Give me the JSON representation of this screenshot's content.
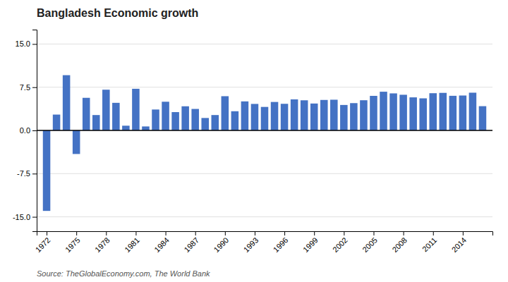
{
  "chart_data": {
    "type": "bar",
    "title": "Bangladesh Economic growth",
    "annotations": [
      "Source: TheGlobalEconomy.com, The World Bank"
    ],
    "x": [
      1972,
      1973,
      1974,
      1975,
      1976,
      1977,
      1978,
      1979,
      1980,
      1981,
      1982,
      1983,
      1984,
      1985,
      1986,
      1987,
      1988,
      1989,
      1990,
      1991,
      1992,
      1993,
      1994,
      1995,
      1996,
      1997,
      1998,
      1999,
      2000,
      2001,
      2002,
      2003,
      2004,
      2005,
      2006,
      2007,
      2008,
      2009,
      2010,
      2011,
      2012,
      2013,
      2014,
      2015,
      2016
    ],
    "values": [
      -13.97,
      2.75,
      9.59,
      -4.09,
      5.66,
      2.67,
      7.07,
      4.79,
      0.82,
      7.23,
      0.69,
      3.63,
      4.98,
      3.18,
      4.19,
      3.73,
      2.16,
      2.67,
      5.94,
      3.33,
      5.04,
      4.6,
      4.08,
      4.94,
      4.62,
      5.39,
      5.23,
      4.67,
      5.29,
      5.33,
      4.42,
      4.74,
      5.24,
      6.0,
      6.72,
      6.43,
      6.19,
      5.74,
      5.57,
      6.46,
      6.52,
      6.01,
      6.06,
      6.55,
      4.21
    ],
    "color": "#4472c4",
    "xlim": [
      1971,
      2017
    ],
    "xticks": [
      1972,
      1975,
      1978,
      1981,
      1984,
      1987,
      1990,
      1993,
      1996,
      1999,
      2002,
      2005,
      2008,
      2011,
      2014
    ],
    "ylim": [
      -17.5,
      17.5
    ],
    "yticks": [
      {
        "value": -15.0,
        "label": "-15.0"
      },
      -7.5,
      {
        "value": 0.0,
        "label": "0.0"
      },
      7.5,
      {
        "value": 15.0,
        "label": "15.0"
      }
    ],
    "grid": true
  }
}
